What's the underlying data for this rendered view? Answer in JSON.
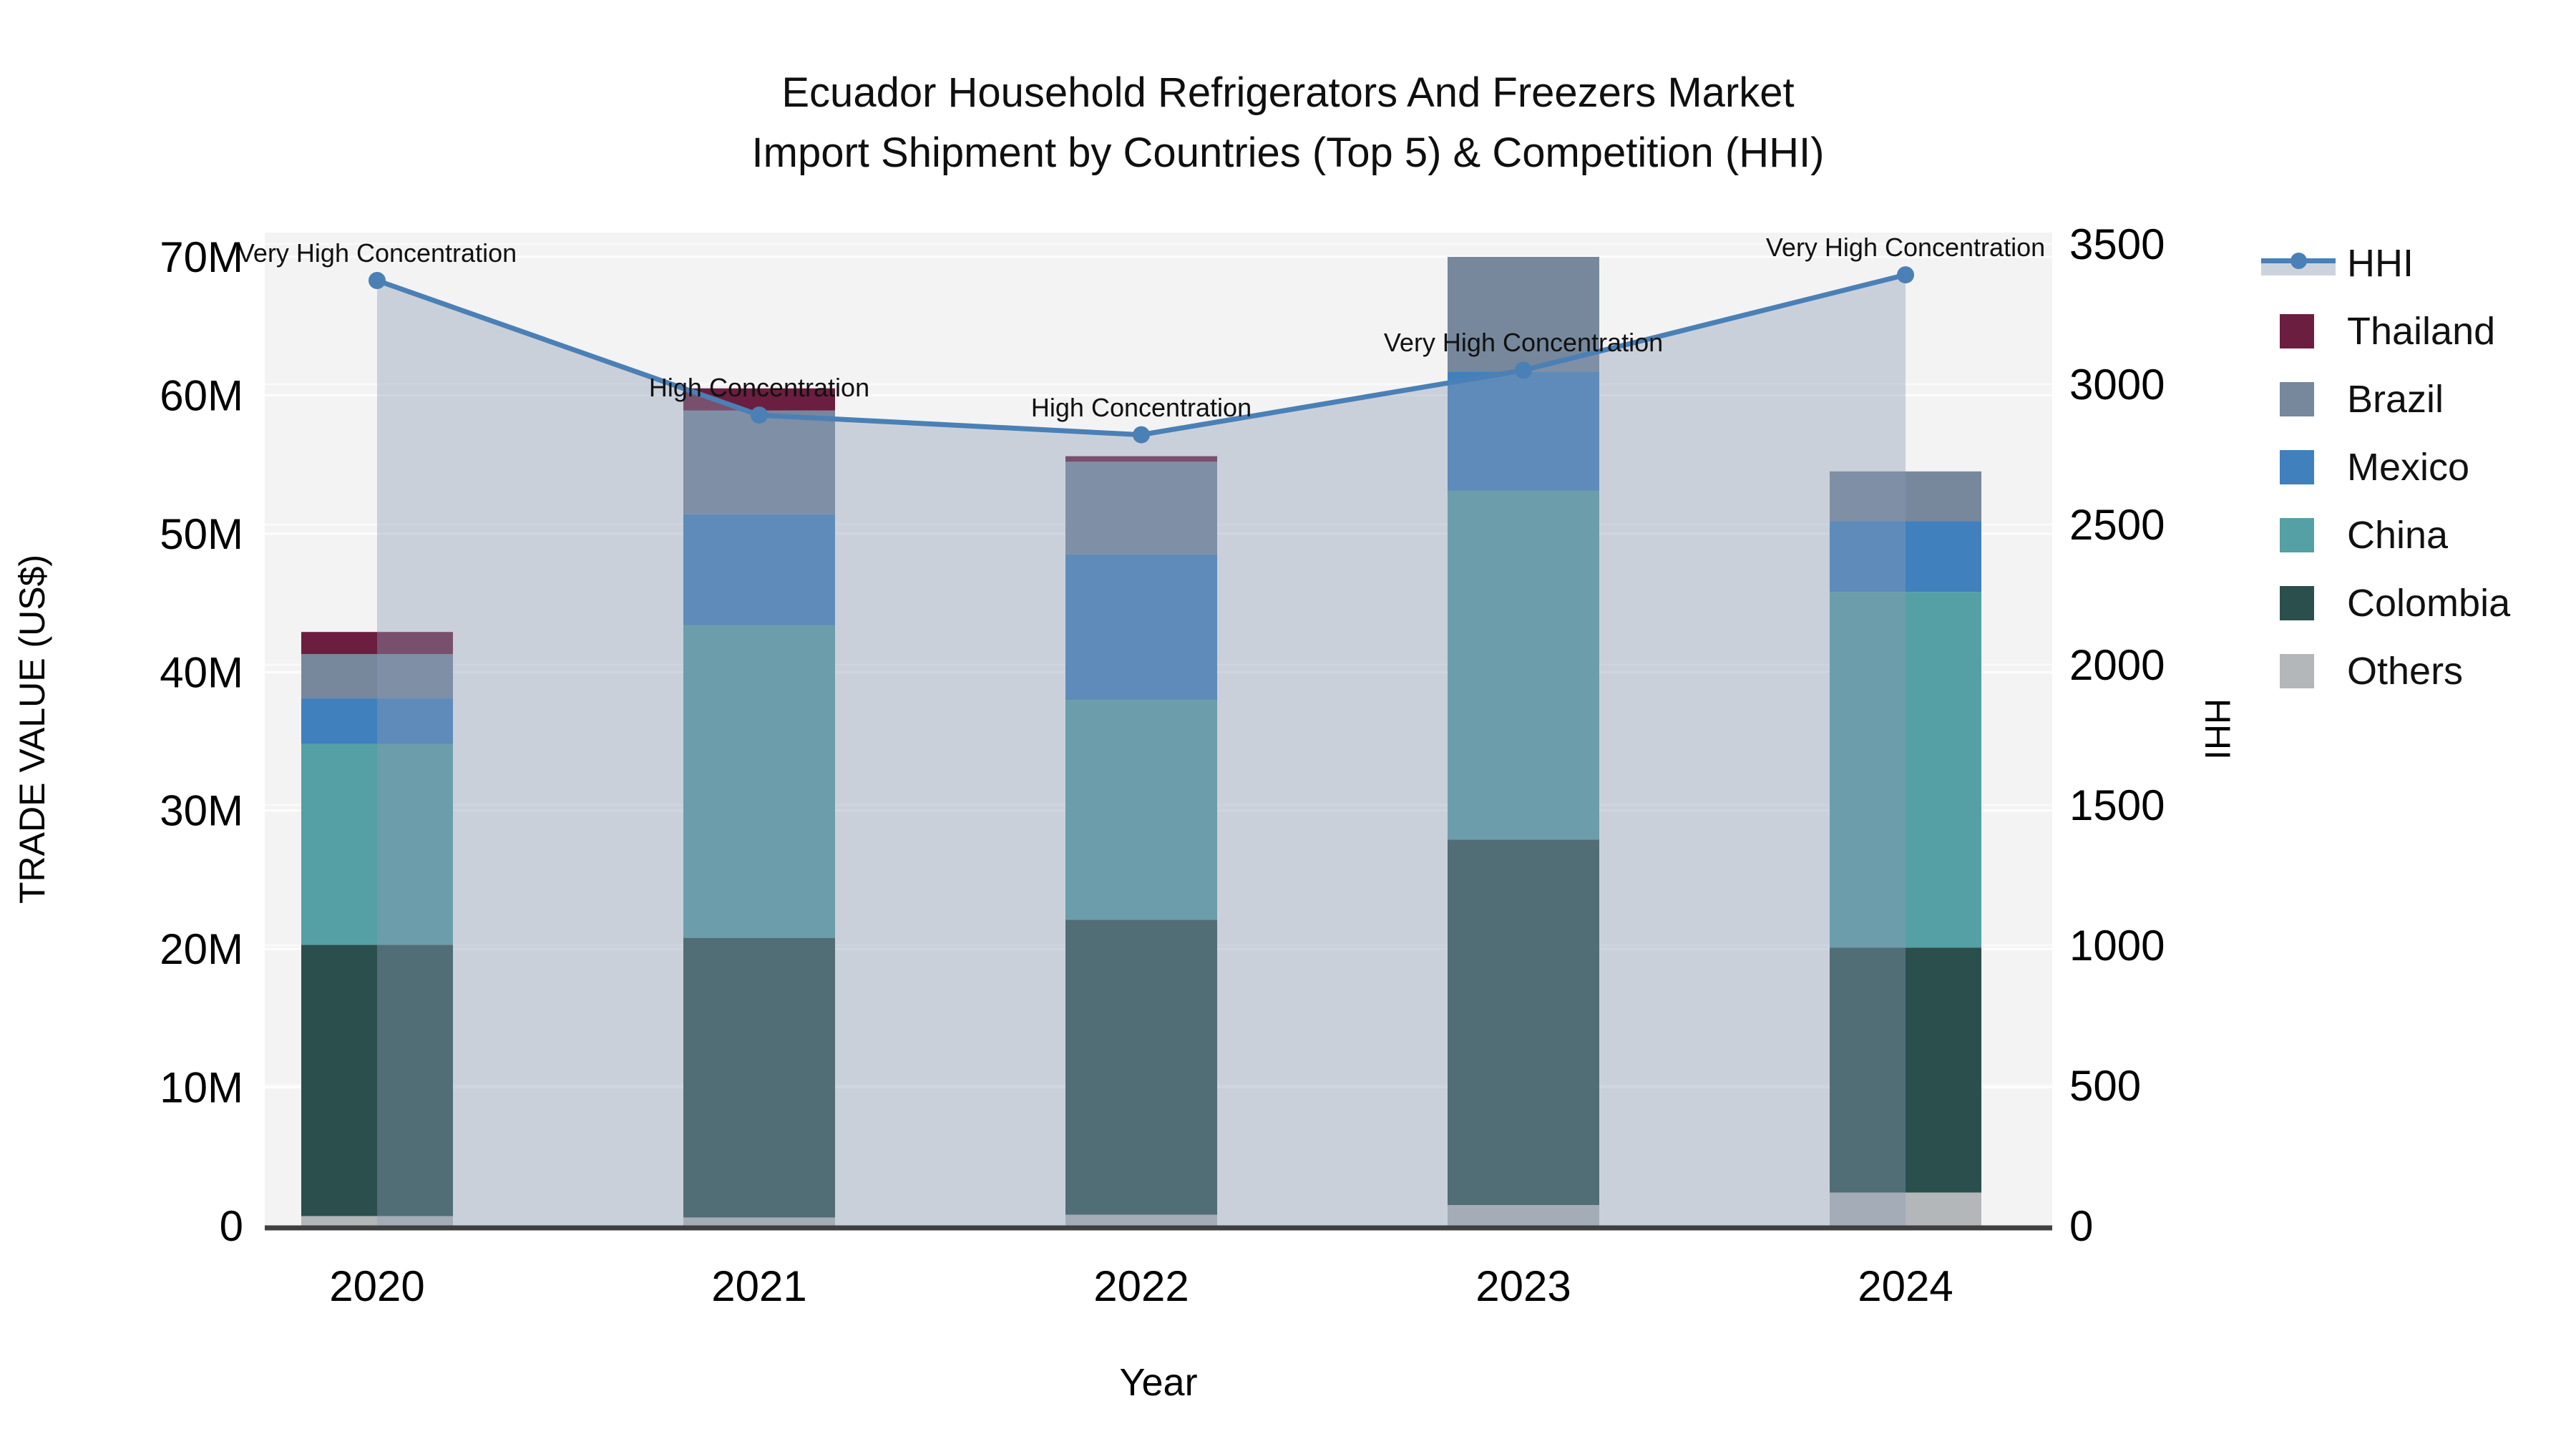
{
  "title": {
    "line1": "Ecuador Household Refrigerators And Freezers Market",
    "line2": "Import Shipment by Countries (Top 5) & Competition (HHI)"
  },
  "axes": {
    "x": {
      "title": "Year",
      "categories": [
        "2020",
        "2021",
        "2022",
        "2023",
        "2024"
      ]
    },
    "y_left": {
      "title": "TRADE VALUE (US$)",
      "tick_labels": [
        "0",
        "10M",
        "20M",
        "30M",
        "40M",
        "50M",
        "60M",
        "70M"
      ],
      "tick_values_millions": [
        0,
        10,
        20,
        30,
        40,
        50,
        60,
        70
      ]
    },
    "y_right": {
      "title": "HHI",
      "tick_labels": [
        "0",
        "500",
        "1000",
        "1500",
        "2000",
        "2500",
        "3000",
        "3500"
      ],
      "tick_values": [
        0,
        500,
        1000,
        1500,
        2000,
        2500,
        3000,
        3500
      ]
    }
  },
  "legend": [
    {
      "label": "HHI",
      "type": "line",
      "color": "#4a80b6"
    },
    {
      "label": "Thailand",
      "type": "swatch",
      "color": "#6b1e3f"
    },
    {
      "label": "Brazil",
      "type": "swatch",
      "color": "#77889c"
    },
    {
      "label": "Mexico",
      "type": "swatch",
      "color": "#4080bd"
    },
    {
      "label": "China",
      "type": "swatch",
      "color": "#55a0a4"
    },
    {
      "label": "Colombia",
      "type": "swatch",
      "color": "#2b4f4d"
    },
    {
      "label": "Others",
      "type": "swatch",
      "color": "#b3b7b9"
    }
  ],
  "colors": {
    "hhi_line": "#4a80b6",
    "hhi_fill": "rgba(139,154,180,0.40)",
    "plot_background": "#f3f3f3",
    "grid_line": "#ffffff",
    "axis_line": "#3f3f3f",
    "text": "#111111"
  },
  "chart_data": {
    "type": "bar+line",
    "title": "Ecuador Household Refrigerators And Freezers Market Import Shipment by Countries (Top 5) & Competition (HHI)",
    "categories": [
      "2020",
      "2021",
      "2022",
      "2023",
      "2024"
    ],
    "xlabel": "Year",
    "ylabel_left": "TRADE VALUE (US$)",
    "ylabel_right": "HHI",
    "y_left_unit": "million US$",
    "y_left_range_millions": [
      0,
      72
    ],
    "y_right_range": [
      0,
      3500
    ],
    "stack_order_bottom_to_top": [
      "Others",
      "Colombia",
      "China",
      "Mexico",
      "Brazil",
      "Thailand"
    ],
    "series": [
      {
        "name": "Others",
        "color": "#b3b7b9",
        "values": [
          0.7,
          0.6,
          0.8,
          1.5,
          2.4
        ]
      },
      {
        "name": "Colombia",
        "color": "#2b4f4d",
        "values": [
          19.6,
          20.2,
          21.3,
          26.4,
          17.7
        ]
      },
      {
        "name": "China",
        "color": "#55a0a4",
        "values": [
          14.5,
          22.6,
          15.9,
          25.2,
          25.7
        ]
      },
      {
        "name": "Mexico",
        "color": "#4080bd",
        "values": [
          3.3,
          8.0,
          10.5,
          8.6,
          5.1
        ]
      },
      {
        "name": "Brazil",
        "color": "#77889c",
        "values": [
          3.2,
          7.5,
          6.7,
          8.3,
          3.6
        ]
      },
      {
        "name": "Thailand",
        "color": "#6b1e3f",
        "values": [
          1.6,
          1.6,
          0.4,
          0.0,
          0.0
        ]
      }
    ],
    "bar_totals_millions": [
      42.9,
      60.5,
      55.6,
      70.0,
      54.5
    ],
    "line_series": {
      "name": "HHI",
      "axis": "right",
      "values": [
        3370,
        2890,
        2820,
        3050,
        3390
      ],
      "marker": "circle"
    },
    "annotations": [
      {
        "x": "2020",
        "text": "Very High Concentration"
      },
      {
        "x": "2021",
        "text": "High Concentration"
      },
      {
        "x": "2022",
        "text": "High Concentration"
      },
      {
        "x": "2023",
        "text": "Very High Concentration"
      },
      {
        "x": "2024",
        "text": "Very High Concentration"
      }
    ],
    "grid": true,
    "legend_position": "right"
  }
}
